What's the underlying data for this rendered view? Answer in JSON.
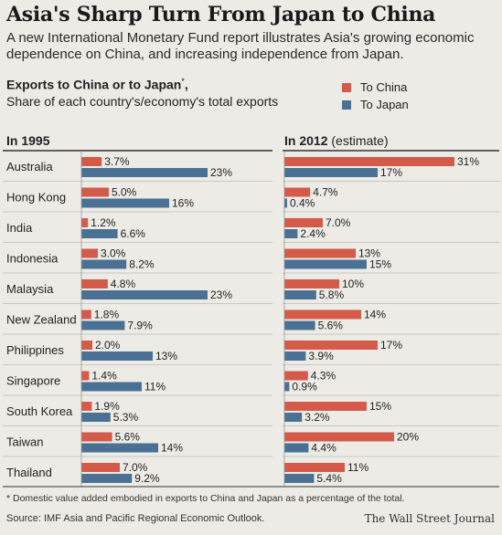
{
  "header": {
    "title": "Asia's Sharp Turn From Japan to China",
    "subtitle": "A new International Monetary Fund report illustrates Asia's growing economic dependence on China, and increasing independence from Japan."
  },
  "label": {
    "title": "Exports to China or to Japan",
    "title_mark": "*",
    "subtitle": "Share of each country's/economy's total exports"
  },
  "legend": [
    {
      "name": "To China",
      "color": "#d45a4a"
    },
    {
      "name": "To Japan",
      "color": "#4a7194"
    }
  ],
  "colors": {
    "china": "#d45a4a",
    "japan": "#4a7194"
  },
  "footer": {
    "footnote": "* Domestic value added embodied in exports to China and Japan as a percentage of the total.",
    "source": "Source: IMF Asia and Pacific Regional Economic Outlook.",
    "credit": "The Wall Street Journal"
  },
  "chart_data": [
    {
      "type": "bar",
      "panel_title": "In 1995",
      "panel_title_note": "",
      "categories": [
        "Australia",
        "Hong Kong",
        "India",
        "Indonesia",
        "Malaysia",
        "New Zealand",
        "Philippines",
        "Singapore",
        "South Korea",
        "Taiwan",
        "Thailand"
      ],
      "series": [
        {
          "name": "To China",
          "values": [
            3.7,
            5.0,
            1.2,
            3.0,
            4.8,
            1.8,
            2.0,
            1.4,
            1.9,
            5.6,
            7.0
          ],
          "labels": [
            "3.7%",
            "5.0%",
            "1.2%",
            "3.0%",
            "4.8%",
            "1.8%",
            "2.0%",
            "1.4%",
            "1.9%",
            "5.6%",
            "7.0%"
          ]
        },
        {
          "name": "To Japan",
          "values": [
            23,
            16,
            6.6,
            8.2,
            23,
            7.9,
            13,
            11,
            5.3,
            14,
            9.2
          ],
          "labels": [
            "23%",
            "16%",
            "6.6%",
            "8.2%",
            "23%",
            "7.9%",
            "13%",
            "11%",
            "5.3%",
            "14%",
            "9.2%"
          ]
        }
      ]
    },
    {
      "type": "bar",
      "panel_title": "In 2012",
      "panel_title_note": "(estimate)",
      "categories": [
        "Australia",
        "Hong Kong",
        "India",
        "Indonesia",
        "Malaysia",
        "New Zealand",
        "Philippines",
        "Singapore",
        "South Korea",
        "Taiwan",
        "Thailand"
      ],
      "series": [
        {
          "name": "To China",
          "values": [
            31,
            4.7,
            7.0,
            13,
            10,
            14,
            17,
            4.3,
            15,
            20,
            11
          ],
          "labels": [
            "31%",
            "4.7%",
            "7.0%",
            "13%",
            "10%",
            "14%",
            "17%",
            "4.3%",
            "15%",
            "20%",
            "11%"
          ]
        },
        {
          "name": "To Japan",
          "values": [
            17,
            0.4,
            2.4,
            15,
            5.8,
            5.6,
            3.9,
            0.9,
            3.2,
            4.4,
            5.4
          ],
          "labels": [
            "17%",
            "0.4%",
            "2.4%",
            "15%",
            "5.8%",
            "5.6%",
            "3.9%",
            "0.9%",
            "3.2%",
            "4.4%",
            "5.4%"
          ]
        }
      ]
    }
  ]
}
